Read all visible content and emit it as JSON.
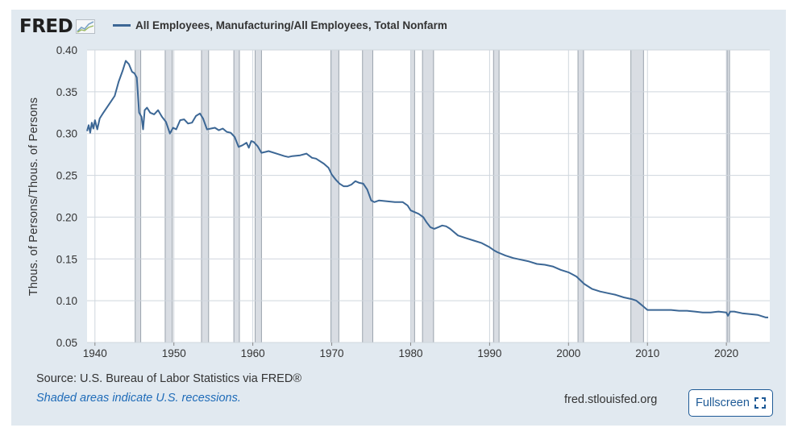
{
  "brand": {
    "logo_text": "FRED"
  },
  "source_text": "Source: U.S. Bureau of Labor Statistics via FRED®",
  "recession_note": "Shaded areas indicate U.S. recessions.",
  "site": "fred.stlouisfed.org",
  "fullscreen_label": "Fullscreen",
  "icons": {
    "logo_graph": "trend-chart-icon",
    "fullscreen": "expand-icon"
  },
  "colors": {
    "line": "#3c6795",
    "recession": "#d9dde3",
    "recession_border": "#9aa3ad",
    "background": "#e1e9f0"
  },
  "chart_data": {
    "type": "line",
    "title": "",
    "xlabel": "",
    "ylabel": "Thous. of Persons/Thous. of Persons",
    "xlim": [
      1939.0,
      2025.5
    ],
    "ylim": [
      0.05,
      0.4
    ],
    "x_ticks": [
      "1940",
      "1950",
      "1960",
      "1970",
      "1980",
      "1990",
      "2000",
      "2010",
      "2020"
    ],
    "y_ticks": [
      "0.05",
      "0.10",
      "0.15",
      "0.20",
      "0.25",
      "0.30",
      "0.35",
      "0.40"
    ],
    "grid": true,
    "legend_position": "top-left",
    "recessions": [
      [
        1945.1,
        1945.8
      ],
      [
        1948.9,
        1949.8
      ],
      [
        1953.5,
        1954.4
      ],
      [
        1957.6,
        1958.3
      ],
      [
        1960.3,
        1961.1
      ],
      [
        1969.9,
        1970.9
      ],
      [
        1973.9,
        1975.2
      ],
      [
        1980.0,
        1980.5
      ],
      [
        1981.5,
        1982.9
      ],
      [
        1990.5,
        1991.2
      ],
      [
        2001.2,
        2001.9
      ],
      [
        2007.9,
        2009.5
      ],
      [
        2020.1,
        2020.4
      ]
    ],
    "series": [
      {
        "name": "All Employees, Manufacturing/All Employees, Total Nonfarm",
        "x": [
          1939.0,
          1939.2,
          1939.4,
          1939.6,
          1939.8,
          1940.0,
          1940.3,
          1940.6,
          1941.0,
          1941.5,
          1942.0,
          1942.5,
          1943.0,
          1943.5,
          1943.9,
          1944.3,
          1944.7,
          1945.0,
          1945.3,
          1945.6,
          1945.9,
          1946.1,
          1946.3,
          1946.6,
          1947.0,
          1947.5,
          1948.0,
          1948.5,
          1949.0,
          1949.5,
          1949.9,
          1950.3,
          1950.8,
          1951.3,
          1951.8,
          1952.3,
          1952.8,
          1953.3,
          1953.7,
          1954.2,
          1954.7,
          1955.2,
          1955.7,
          1956.2,
          1956.7,
          1957.2,
          1957.7,
          1958.2,
          1958.7,
          1959.2,
          1959.5,
          1959.8,
          1960.1,
          1960.6,
          1961.1,
          1961.6,
          1962.0,
          1963.0,
          1964.0,
          1964.5,
          1965.0,
          1966.0,
          1966.8,
          1967.5,
          1968.0,
          1969.0,
          1969.6,
          1970.0,
          1970.5,
          1971.0,
          1971.5,
          1972.0,
          1972.5,
          1973.0,
          1973.5,
          1974.0,
          1974.5,
          1975.0,
          1975.4,
          1976.0,
          1977.0,
          1978.0,
          1979.0,
          1979.6,
          1980.0,
          1980.5,
          1981.0,
          1981.6,
          1982.0,
          1982.5,
          1983.0,
          1983.5,
          1984.0,
          1984.5,
          1985.0,
          1986.0,
          1987.0,
          1988.0,
          1989.0,
          1990.0,
          1990.6,
          1991.0,
          1992.0,
          1993.0,
          1994.0,
          1995.0,
          1996.0,
          1997.0,
          1998.0,
          1999.0,
          2000.0,
          2000.6,
          2001.0,
          2002.0,
          2003.0,
          2004.0,
          2005.0,
          2006.0,
          2007.0,
          2008.0,
          2008.6,
          2009.0,
          2009.5,
          2010.0,
          2011.0,
          2012.0,
          2013.0,
          2014.0,
          2015.0,
          2016.0,
          2017.0,
          2018.0,
          2019.0,
          2020.0,
          2020.2,
          2020.5,
          2021.0,
          2022.0,
          2023.0,
          2024.0,
          2025.0,
          2025.3
        ],
        "y": [
          0.303,
          0.31,
          0.301,
          0.313,
          0.306,
          0.316,
          0.305,
          0.318,
          0.324,
          0.331,
          0.338,
          0.345,
          0.362,
          0.375,
          0.387,
          0.383,
          0.374,
          0.372,
          0.367,
          0.325,
          0.32,
          0.305,
          0.328,
          0.331,
          0.325,
          0.323,
          0.328,
          0.32,
          0.314,
          0.3,
          0.307,
          0.305,
          0.316,
          0.317,
          0.312,
          0.313,
          0.321,
          0.324,
          0.318,
          0.305,
          0.306,
          0.307,
          0.304,
          0.306,
          0.302,
          0.301,
          0.296,
          0.284,
          0.286,
          0.289,
          0.283,
          0.291,
          0.29,
          0.285,
          0.277,
          0.278,
          0.279,
          0.276,
          0.273,
          0.272,
          0.273,
          0.274,
          0.276,
          0.271,
          0.27,
          0.264,
          0.259,
          0.251,
          0.245,
          0.24,
          0.237,
          0.237,
          0.239,
          0.243,
          0.241,
          0.24,
          0.233,
          0.22,
          0.218,
          0.22,
          0.219,
          0.218,
          0.218,
          0.214,
          0.208,
          0.206,
          0.204,
          0.2,
          0.194,
          0.188,
          0.186,
          0.188,
          0.19,
          0.189,
          0.186,
          0.178,
          0.175,
          0.172,
          0.169,
          0.164,
          0.16,
          0.158,
          0.154,
          0.151,
          0.149,
          0.147,
          0.144,
          0.143,
          0.141,
          0.137,
          0.134,
          0.131,
          0.129,
          0.12,
          0.114,
          0.111,
          0.109,
          0.107,
          0.104,
          0.102,
          0.1,
          0.097,
          0.093,
          0.089,
          0.089,
          0.089,
          0.089,
          0.088,
          0.088,
          0.087,
          0.086,
          0.086,
          0.087,
          0.086,
          0.082,
          0.087,
          0.087,
          0.085,
          0.084,
          0.083,
          0.08,
          0.08
        ]
      }
    ]
  }
}
